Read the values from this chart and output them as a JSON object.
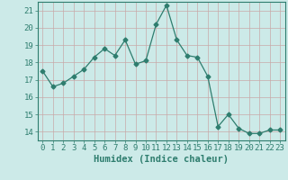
{
  "x": [
    0,
    1,
    2,
    3,
    4,
    5,
    6,
    7,
    8,
    9,
    10,
    11,
    12,
    13,
    14,
    15,
    16,
    17,
    18,
    19,
    20,
    21,
    22,
    23
  ],
  "y": [
    17.5,
    16.6,
    16.8,
    17.2,
    17.6,
    18.3,
    18.8,
    18.4,
    19.3,
    17.9,
    18.1,
    20.2,
    21.3,
    19.3,
    18.4,
    18.3,
    17.2,
    14.3,
    15.0,
    14.2,
    13.9,
    13.9,
    14.1,
    14.1
  ],
  "line_color": "#2e7d6e",
  "marker": "D",
  "marker_size": 2.5,
  "bg_color": "#cceae8",
  "grid_color_major": "#c8a0a0",
  "grid_color_minor": "#b8d8d5",
  "xlabel": "Humidex (Indice chaleur)",
  "xlim": [
    -0.5,
    23.5
  ],
  "ylim": [
    13.5,
    21.5
  ],
  "yticks": [
    14,
    15,
    16,
    17,
    18,
    19,
    20,
    21
  ],
  "xticks": [
    0,
    1,
    2,
    3,
    4,
    5,
    6,
    7,
    8,
    9,
    10,
    11,
    12,
    13,
    14,
    15,
    16,
    17,
    18,
    19,
    20,
    21,
    22,
    23
  ],
  "axis_color": "#2e7d6e",
  "tick_color": "#2e7d6e",
  "label_fontsize": 7.5,
  "tick_fontsize": 6.5
}
